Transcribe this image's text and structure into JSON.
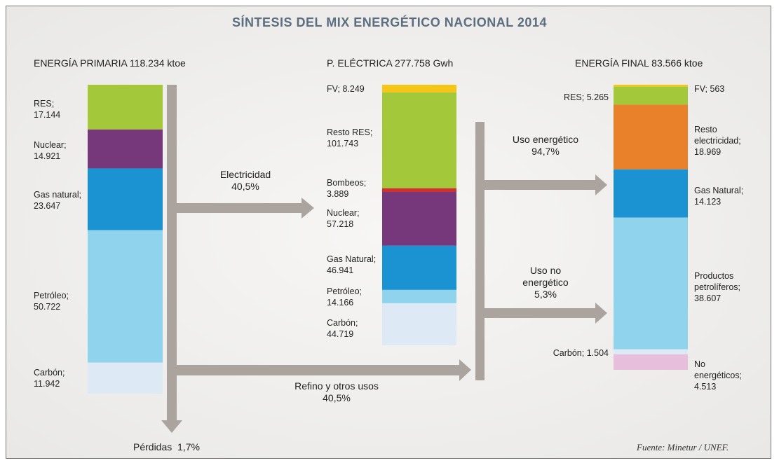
{
  "title": "SÍNTESIS DEL MIX ENERGÉTICO NACIONAL 2014",
  "columns": [
    {
      "heading": "ENERGÍA PRIMARIA 118.234 ktoe",
      "segments": [
        {
          "name": "RES;",
          "value": 17144,
          "value_label": "17.144",
          "color": "#a3c93a"
        },
        {
          "name": "Nuclear;",
          "value": 14921,
          "value_label": "14.921",
          "color": "#76387a"
        },
        {
          "name": "Gas natural;",
          "value": 23647,
          "value_label": "23.647",
          "color": "#1b93d3"
        },
        {
          "name": "Petróleo;",
          "value": 50722,
          "value_label": "50.722",
          "color": "#90d3ec"
        },
        {
          "name": "Carbón;",
          "value": 11942,
          "value_label": "11.942",
          "color": "#dde9f5"
        }
      ]
    },
    {
      "heading": "P. ELÉCTRICA 277.758 Gwh",
      "segments": [
        {
          "name": "FV;",
          "value": 8249,
          "value_label": "8.249",
          "color": "#f5c518"
        },
        {
          "name": "Resto RES;",
          "value": 101743,
          "value_label": "101.743",
          "color": "#a3c93a"
        },
        {
          "name": "Bombeos;",
          "value": 3889,
          "value_label": "3.889",
          "color": "#d0312d"
        },
        {
          "name": "Nuclear;",
          "value": 57218,
          "value_label": "57.218",
          "color": "#76387a"
        },
        {
          "name": "Gas Natural;",
          "value": 46941,
          "value_label": "46.941",
          "color": "#1b93d3"
        },
        {
          "name": "Petróleo;",
          "value": 14166,
          "value_label": "14.166",
          "color": "#90d3ec"
        },
        {
          "name": "Carbón;",
          "value": 44719,
          "value_label": "44.719",
          "color": "#dde9f5"
        }
      ]
    },
    {
      "heading": "ENERGÍA FINAL 83.566 ktoe",
      "segments": [
        {
          "name": "FV;",
          "value": 563,
          "value_label": "563",
          "color": "#f5c518"
        },
        {
          "name": "RES;",
          "value": 5265,
          "value_label": "5.265",
          "color": "#a3c93a"
        },
        {
          "name": "Resto electricidad;",
          "value": 18969,
          "value_label": "18.969",
          "color": "#e8812a"
        },
        {
          "name": "Gas Natural;",
          "value": 14123,
          "value_label": "14.123",
          "color": "#1b93d3"
        },
        {
          "name": "Productos petrolíferos;",
          "value": 38607,
          "value_label": "38.607",
          "color": "#90d3ec"
        },
        {
          "name": "Carbón;",
          "value": 1504,
          "value_label": "1.504",
          "color": "#dde9f5"
        },
        {
          "name": "No energéticos;",
          "value": 4513,
          "value_label": "4.513",
          "color": "#e8bedd"
        }
      ]
    }
  ],
  "flows": [
    {
      "label": "Electricidad",
      "share": "40,5%"
    },
    {
      "label": "Refino y otros usos",
      "share": "40,5%"
    },
    {
      "label": "Uso energético",
      "share": "94,7%"
    },
    {
      "label": "Uso no energético",
      "share": "5,3%"
    }
  ],
  "losses": {
    "label": "Pérdidas",
    "share": "1,7%"
  },
  "source": "Fuente: Minetur / UNEF."
}
